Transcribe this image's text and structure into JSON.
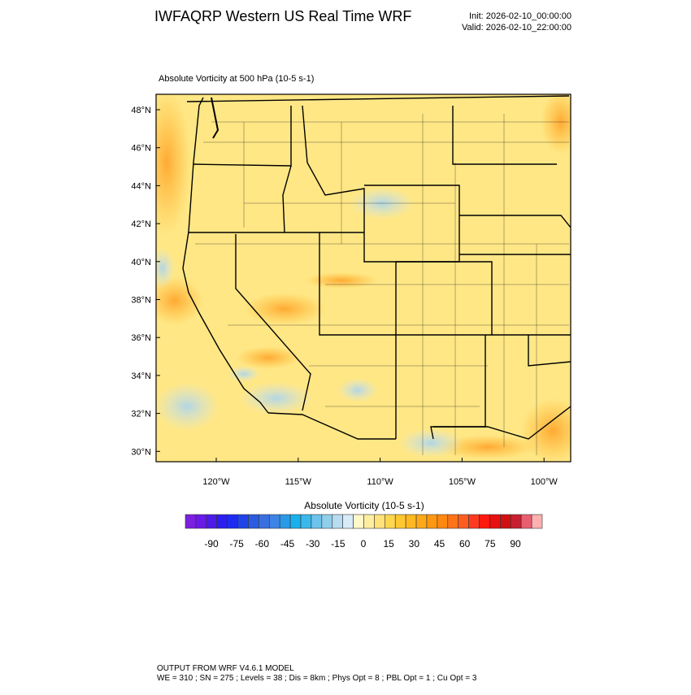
{
  "header": {
    "title": "IWFAQRP Western US Real Time WRF",
    "init": "Init: 2026-02-10_00:00:00",
    "valid": "Valid: 2026-02-10_22:00:00"
  },
  "map": {
    "title": "Absolute Vorticity at 500 hPa   (10-5 s-1)",
    "lat_labels": [
      "48°N",
      "46°N",
      "44°N",
      "42°N",
      "40°N",
      "38°N",
      "36°N",
      "34°N",
      "32°N",
      "30°N"
    ],
    "lon_labels": [
      "120°W",
      "115°W",
      "110°W",
      "105°W",
      "100°W"
    ]
  },
  "colorbar": {
    "title": "Absolute Vorticity  (10-5 s-1)",
    "colors": [
      "#7b1fe0",
      "#6a1ae6",
      "#4b1be8",
      "#2a1ff0",
      "#1e2cf0",
      "#1f45e8",
      "#2a5be0",
      "#3a6fe0",
      "#3c84e6",
      "#2a9ae8",
      "#1ab0ec",
      "#3ab8ec",
      "#6cc4ec",
      "#90cfec",
      "#b8dcf0",
      "#d8ecf8",
      "#fff8c8",
      "#ffeea0",
      "#ffe27a",
      "#ffd64f",
      "#ffc830",
      "#ffb820",
      "#ffa818",
      "#ff9810",
      "#ff8810",
      "#ff7418",
      "#ff5c20",
      "#ff3a20",
      "#ff1a10",
      "#e81010",
      "#d01010",
      "#c82030",
      "#e86070",
      "#ffb0b0"
    ],
    "ticks": [
      -90,
      -75,
      -60,
      -45,
      -30,
      -15,
      0,
      15,
      30,
      45,
      60,
      75,
      90
    ]
  },
  "footer": {
    "line1": "OUTPUT FROM WRF V4.6.1 MODEL",
    "line2": "WE = 310 ; SN = 275 ; Levels = 38 ; Dis = 8km ; Phys Opt = 8 ; PBL Opt = 1 ; Cu Opt = 3"
  }
}
